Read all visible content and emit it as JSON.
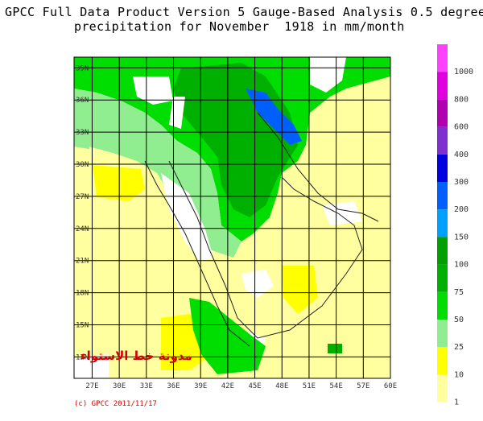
{
  "title": {
    "line1": "GPCC Full Data Product Version 5 Gauge-Based Analysis 0.5 degree",
    "line2": "precipitation for November  1918 in mm/month"
  },
  "map": {
    "lat_labels": [
      "39N",
      "36N",
      "33N",
      "30N",
      "27N",
      "24N",
      "21N",
      "18N",
      "15N",
      "12N"
    ],
    "lon_labels": [
      "27E",
      "30E",
      "33E",
      "36E",
      "39E",
      "42E",
      "45E",
      "48E",
      "51E",
      "54E",
      "57E",
      "60E"
    ],
    "colors": {
      "missing": "#ffffff",
      "c1": "#ffffa0",
      "c10": "#ffff00",
      "c25": "#90ee90",
      "c50": "#00dd00",
      "c75": "#00b000",
      "c100": "#00a000",
      "c150": "#00a0ff",
      "c200": "#0060ff",
      "c300": "#0000e0",
      "c400": "#8030d0",
      "c600": "#b000b0",
      "c800": "#e000e0",
      "c1000": "#ff40ff"
    }
  },
  "colorbar": {
    "labels": [
      "1000",
      "800",
      "600",
      "400",
      "300",
      "200",
      "150",
      "100",
      "75",
      "50",
      "25",
      "10",
      "1"
    ],
    "colors": [
      "#ff40ff",
      "#e000e0",
      "#b000b0",
      "#8030d0",
      "#0000e0",
      "#0060ff",
      "#00a0ff",
      "#00a000",
      "#00b000",
      "#00dd00",
      "#90ee90",
      "#ffff00",
      "#ffffa0"
    ],
    "units": "mm/month"
  },
  "watermark": "مدونة خط الاستواء",
  "copyright": "(c) GPCC 2011/11/17"
}
